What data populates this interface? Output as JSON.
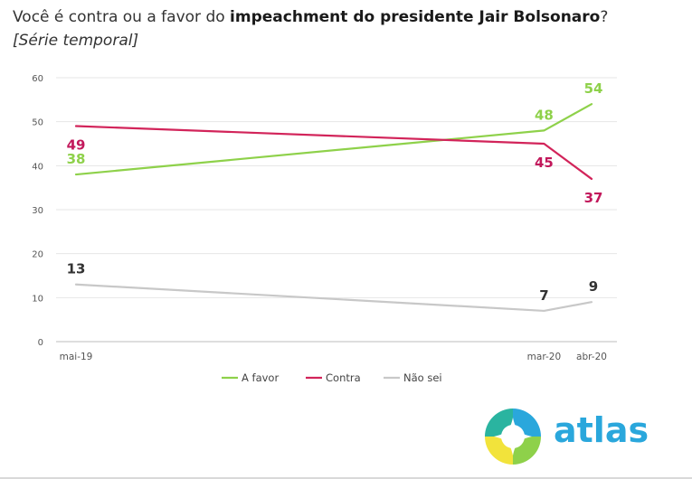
{
  "header": {
    "title_prefix": "Você é contra ou a favor do ",
    "title_bold": "impeachment do presidente Jair Bolsonaro",
    "title_suffix": "?",
    "subtitle": "[Série temporal]"
  },
  "logo": {
    "text": "atlas",
    "color": "#2aa7dc"
  },
  "chart_data": {
    "type": "line",
    "title": "Você é contra ou a favor do impeachment do presidente Jair Bolsonaro?",
    "subtitle": "[Série temporal]",
    "xlabel": "",
    "ylabel": "",
    "ylim": [
      0,
      60
    ],
    "yticks": [
      0,
      10,
      20,
      30,
      40,
      50,
      60
    ],
    "x_time_axis": [
      "2019-05-01",
      "2020-04-01"
    ],
    "categories": [
      "mai-19",
      "mar-20",
      "abr-20"
    ],
    "x_dates": [
      "2019-05-01",
      "2020-03-01",
      "2020-04-01"
    ],
    "grid": "horizontal",
    "legend_position": "bottom",
    "series": [
      {
        "name": "A favor",
        "values": [
          38,
          48,
          54
        ],
        "color": "#8ed14a"
      },
      {
        "name": "Contra",
        "values": [
          49,
          45,
          37
        ],
        "color": "#d2245a"
      },
      {
        "name": "Não sei",
        "values": [
          13,
          7,
          9
        ],
        "color": "#c8c8c8"
      }
    ],
    "label_colors": {
      "A favor": "#8ed14a",
      "Contra": "#c2185b",
      "Não sei": "#333333"
    }
  }
}
